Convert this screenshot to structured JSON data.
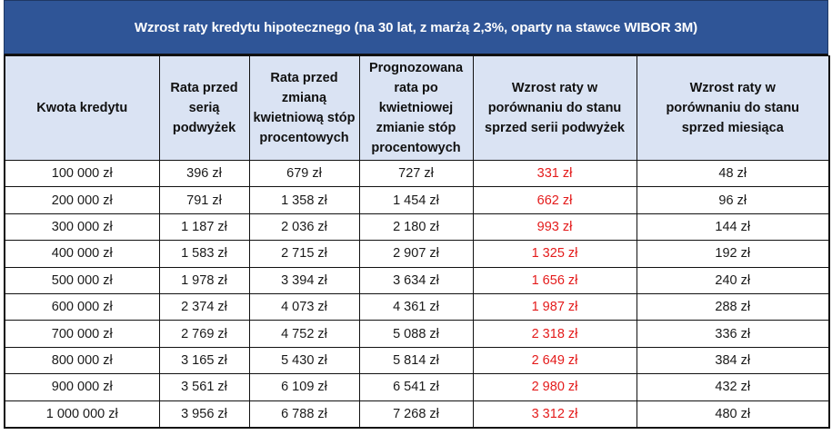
{
  "title": "Wzrost raty kredytu hipotecznego (na 30 lat, z marżą 2,3%, oparty na stawce WIBOR 3M)",
  "colors": {
    "title_bg": "#2f5597",
    "header_bg": "#dae3f3",
    "highlight_text": "#e41b1b"
  },
  "columns": [
    "Kwota kredytu",
    "Rata przed serią podwyżek",
    "Rata przed zmianą kwietniową stóp procentowych",
    "Prognozowana rata po kwietniowej zmianie stóp procentowych",
    "Wzrost raty w porównaniu do stanu sprzed serii podwyżek",
    "Wzrost raty w porównaniu do stanu sprzed miesiąca"
  ],
  "rows": [
    [
      "100 000 zł",
      "396 zł",
      "679 zł",
      "727 zł",
      "331 zł",
      "48 zł"
    ],
    [
      "200 000 zł",
      "791 zł",
      "1 358 zł",
      "1 454 zł",
      "662 zł",
      "96 zł"
    ],
    [
      "300 000 zł",
      "1 187 zł",
      "2 036 zł",
      "2 180 zł",
      "993 zł",
      "144 zł"
    ],
    [
      "400 000 zł",
      "1 583 zł",
      "2 715 zł",
      "2 907 zł",
      "1 325 zł",
      "192 zł"
    ],
    [
      "500 000 zł",
      "1 978 zł",
      "3 394 zł",
      "3 634 zł",
      "1 656 zł",
      "240 zł"
    ],
    [
      "600 000 zł",
      "2 374 zł",
      "4 073 zł",
      "4 361 zł",
      "1 987 zł",
      "288 zł"
    ],
    [
      "700 000 zł",
      "2 769 zł",
      "4 752 zł",
      "5 088 zł",
      "2 318 zł",
      "336 zł"
    ],
    [
      "800 000 zł",
      "3 165 zł",
      "5 430 zł",
      "5 814 zł",
      "2 649 zł",
      "384 zł"
    ],
    [
      "900 000 zł",
      "3 561 zł",
      "6 109 zł",
      "6 541 zł",
      "2 980 zł",
      "432 zł"
    ],
    [
      "1 000 000 zł",
      "3 956 zł",
      "6 788 zł",
      "7 268 zł",
      "3 312 zł",
      "480 zł"
    ]
  ]
}
